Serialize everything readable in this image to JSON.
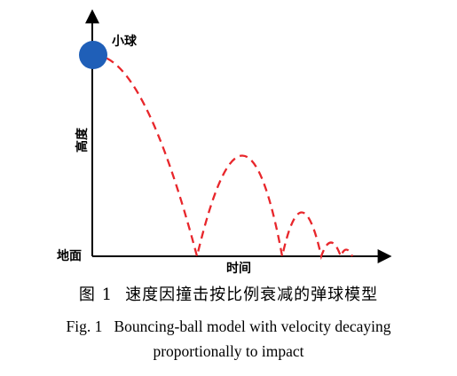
{
  "diagram": {
    "ball_label": "小球",
    "y_axis_label": "高度",
    "ground_label": "地面",
    "x_axis_label": "时间",
    "ball_color": "#1f5fb8",
    "trajectory_color": "#e8262b",
    "axis_color": "#000000",
    "trajectory_style": "dashed"
  },
  "caption": {
    "cn_prefix": "图 1",
    "cn_title": "速度因撞击按比例衰减的弹球模型",
    "en_line1": "Fig. 1   Bouncing-ball model with velocity decaying",
    "en_line2": "proportionally to impact"
  }
}
